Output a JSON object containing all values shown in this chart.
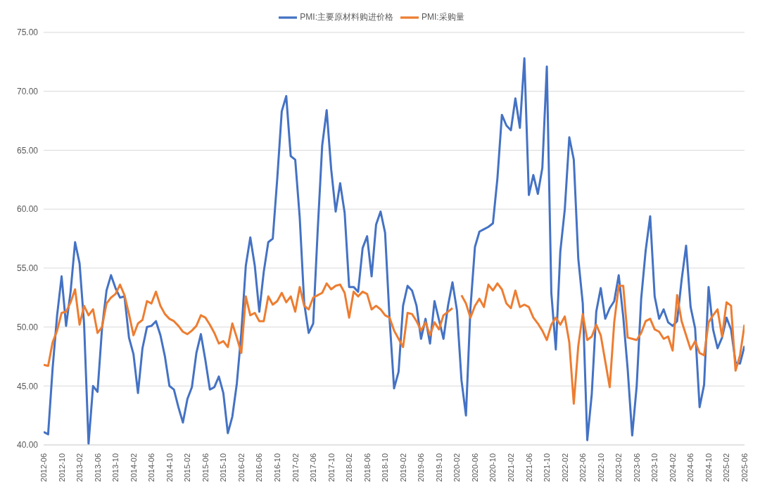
{
  "chart_data": {
    "type": "line",
    "categories": [
      "2012-06",
      null,
      null,
      null,
      "2012-10",
      null,
      null,
      null,
      "2013-02",
      null,
      null,
      null,
      "2013-06",
      null,
      null,
      null,
      "2013-10",
      null,
      null,
      null,
      "2014-02",
      null,
      null,
      null,
      "2014-06",
      null,
      null,
      null,
      "2014-10",
      null,
      null,
      null,
      "2015-02",
      null,
      null,
      null,
      "2015-06",
      null,
      null,
      null,
      "2015-10",
      null,
      null,
      null,
      "2016-02",
      null,
      null,
      null,
      "2016-06",
      null,
      null,
      null,
      "2016-10",
      null,
      null,
      null,
      "2017-02",
      null,
      null,
      null,
      "2017-06",
      null,
      null,
      null,
      "2017-10",
      null,
      null,
      null,
      "2018-02",
      null,
      null,
      null,
      "2018-06",
      null,
      null,
      null,
      "2018-10",
      null,
      null,
      null,
      "2019-02",
      null,
      null,
      null,
      "2019-06",
      null,
      null,
      null,
      "2019-10",
      null,
      null,
      null,
      "2020-02",
      null,
      null,
      null,
      "2020-06",
      null,
      null,
      null,
      "2020-10",
      null,
      null,
      null,
      "2021-02",
      null,
      null,
      null,
      "2021-06",
      null,
      null,
      null,
      "2021-10",
      null,
      null,
      null,
      "2022-02",
      null,
      null,
      null,
      "2022-06",
      null,
      null,
      null,
      "2022-10",
      null,
      null,
      null,
      "2023-02",
      null,
      null,
      null,
      "2023-06",
      null,
      null,
      null,
      "2023-10",
      null,
      null,
      null,
      "2024-02",
      null,
      null,
      null,
      "2024-06",
      null,
      null,
      null,
      "2024-10",
      null,
      null,
      null,
      "2025-02",
      null,
      null,
      null,
      "2025-06"
    ],
    "series": [
      {
        "name": "PMI:主要原材料购进价格",
        "color": "#4472c4",
        "values": [
          41.1,
          40.9,
          46.5,
          51.0,
          54.3,
          50.1,
          53.0,
          57.2,
          55.4,
          50.3,
          40.1,
          45.0,
          44.5,
          49.9,
          53.1,
          54.4,
          53.3,
          52.5,
          52.6,
          49.1,
          47.7,
          44.4,
          48.2,
          50.0,
          50.1,
          50.5,
          49.3,
          47.5,
          45.0,
          44.7,
          43.2,
          41.9,
          43.9,
          44.9,
          47.8,
          49.4,
          47.2,
          44.7,
          44.9,
          45.8,
          44.4,
          41.0,
          42.4,
          45.2,
          49.5,
          55.2,
          57.6,
          55.2,
          51.3,
          54.7,
          57.2,
          57.5,
          62.6,
          68.3,
          69.6,
          64.5,
          64.2,
          59.3,
          52.0,
          49.5,
          50.3,
          58.2,
          65.4,
          68.4,
          63.4,
          59.8,
          62.2,
          59.7,
          53.4,
          53.4,
          53.0,
          56.7,
          57.7,
          54.3,
          58.7,
          59.8,
          58.0,
          50.7,
          44.8,
          46.2,
          51.8,
          53.5,
          53.1,
          51.8,
          49.0,
          50.7,
          48.6,
          52.2,
          50.6,
          49.0,
          51.8,
          53.8,
          51.4,
          45.5,
          42.5,
          51.6,
          56.8,
          58.1,
          58.3,
          58.5,
          58.8,
          62.6,
          68.0,
          67.1,
          66.7,
          69.4,
          66.9,
          72.8,
          61.2,
          62.9,
          61.3,
          63.5,
          72.1,
          52.9,
          48.1,
          56.4,
          60.0,
          66.1,
          64.2,
          55.8,
          52.0,
          40.4,
          44.3,
          51.3,
          53.3,
          50.7,
          51.6,
          52.2,
          54.4,
          50.9,
          46.4,
          40.8,
          45.0,
          52.4,
          56.5,
          59.4,
          52.6,
          50.7,
          51.5,
          50.4,
          50.1,
          50.5,
          54.0,
          56.9,
          51.7,
          49.9,
          43.2,
          45.1,
          53.4,
          49.8,
          48.2,
          49.1,
          50.8,
          49.8,
          47.0,
          46.9,
          48.4
        ]
      },
      {
        "name": "PMI:采购量",
        "color": "#ed7d31",
        "values": [
          46.8,
          46.7,
          48.7,
          49.7,
          51.2,
          51.3,
          52.1,
          53.2,
          50.2,
          51.8,
          51.0,
          51.5,
          49.5,
          50.0,
          52.0,
          52.5,
          52.8,
          53.6,
          52.7,
          51.1,
          49.3,
          50.3,
          50.6,
          52.2,
          52.0,
          53.0,
          51.8,
          51.1,
          50.7,
          50.5,
          50.1,
          49.6,
          49.4,
          49.7,
          50.1,
          51.0,
          50.8,
          50.2,
          49.5,
          48.6,
          48.8,
          48.3,
          50.3,
          49.1,
          47.8,
          52.6,
          51.0,
          51.2,
          50.5,
          50.5,
          52.6,
          51.9,
          52.2,
          52.9,
          52.1,
          52.6,
          51.3,
          53.4,
          51.8,
          51.5,
          52.5,
          52.7,
          52.9,
          53.7,
          53.2,
          53.5,
          53.6,
          52.9,
          50.8,
          53.0,
          52.6,
          53.0,
          52.8,
          51.5,
          51.8,
          51.5,
          51.0,
          50.8,
          49.7,
          49.0,
          48.3,
          51.2,
          51.1,
          50.5,
          49.7,
          50.4,
          49.3,
          50.4,
          49.8,
          51.0,
          51.3,
          51.6,
          null,
          52.7,
          52.0,
          50.8,
          51.8,
          52.4,
          51.7,
          53.6,
          53.1,
          53.7,
          53.2,
          52.0,
          51.6,
          53.1,
          51.7,
          51.9,
          51.7,
          50.8,
          50.3,
          49.7,
          48.9,
          50.2,
          50.8,
          50.2,
          50.9,
          48.7,
          43.5,
          48.4,
          51.1,
          48.9,
          49.2,
          50.2,
          49.3,
          47.1,
          44.9,
          50.4,
          53.5,
          53.5,
          49.1,
          49.0,
          48.9,
          49.5,
          50.5,
          50.7,
          49.8,
          49.6,
          49.0,
          49.2,
          48.0,
          52.7,
          50.5,
          49.3,
          48.1,
          48.8,
          47.8,
          47.6,
          50.4,
          51.0,
          51.5,
          49.2,
          52.1,
          51.8,
          46.3,
          47.6,
          50.2
        ]
      }
    ],
    "ylim": [
      40,
      75
    ],
    "yticks": [
      {
        "value": 40,
        "label": "40.00"
      },
      {
        "value": 45,
        "label": "45.00"
      },
      {
        "value": 50,
        "label": "50.00"
      },
      {
        "value": 55,
        "label": "55.00"
      },
      {
        "value": 60,
        "label": "60.00"
      },
      {
        "value": 65,
        "label": "65.00"
      },
      {
        "value": 70,
        "label": "70.00"
      },
      {
        "value": 75,
        "label": "75.00"
      }
    ],
    "grid": "y",
    "legend": "top",
    "marker": "none",
    "line_style": "solid"
  }
}
